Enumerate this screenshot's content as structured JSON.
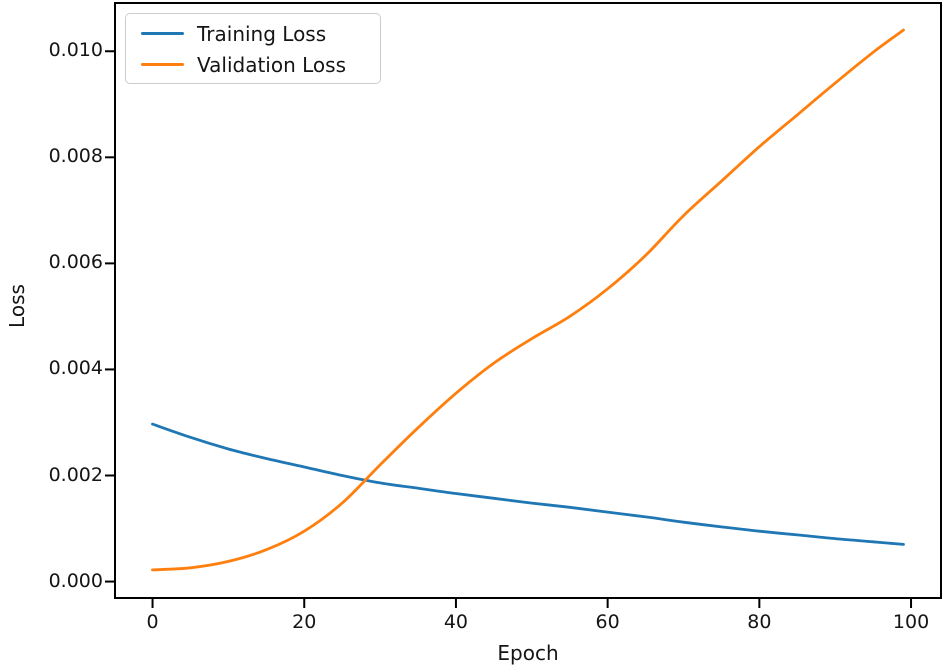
{
  "figure": {
    "background": "#ffffff",
    "text_color": "#151515",
    "spine_color": "#000000"
  },
  "chart_data": {
    "type": "line",
    "title": "",
    "xlabel": "Epoch",
    "ylabel": "Loss",
    "xlim": [
      -4.95,
      103.95
    ],
    "ylim": [
      -0.00031,
      0.01091
    ],
    "x_ticks": [
      0,
      20,
      40,
      60,
      80,
      100
    ],
    "x_tick_labels": [
      "0",
      "20",
      "40",
      "60",
      "80",
      "100"
    ],
    "y_ticks": [
      0,
      0.002,
      0.004,
      0.006,
      0.008,
      0.01
    ],
    "y_tick_labels": [
      "0.000",
      "0.002",
      "0.004",
      "0.006",
      "0.008",
      "0.010"
    ],
    "grid": false,
    "legend": {
      "position": "upper-left",
      "entries": [
        "Training Loss",
        "Validation Loss"
      ]
    },
    "x": [
      0,
      5,
      10,
      15,
      20,
      25,
      30,
      35,
      40,
      45,
      50,
      55,
      60,
      65,
      70,
      75,
      80,
      85,
      90,
      95,
      99
    ],
    "series": [
      {
        "name": "Training Loss",
        "color": "#1f77b4",
        "values": [
          0.00297,
          0.00272,
          0.0025,
          0.00232,
          0.00216,
          0.002,
          0.00186,
          0.00176,
          0.00166,
          0.00157,
          0.00148,
          0.0014,
          0.00131,
          0.00122,
          0.00112,
          0.00103,
          0.00095,
          0.00088,
          0.00081,
          0.00075,
          0.0007
        ]
      },
      {
        "name": "Validation Loss",
        "color": "#ff7f0e",
        "values": [
          0.00022,
          0.00026,
          0.00038,
          0.0006,
          0.00095,
          0.00148,
          0.0022,
          0.0029,
          0.00355,
          0.00412,
          0.00458,
          0.005,
          0.00552,
          0.00615,
          0.0069,
          0.00755,
          0.0082,
          0.0088,
          0.0094,
          0.00998,
          0.0104
        ]
      }
    ]
  }
}
